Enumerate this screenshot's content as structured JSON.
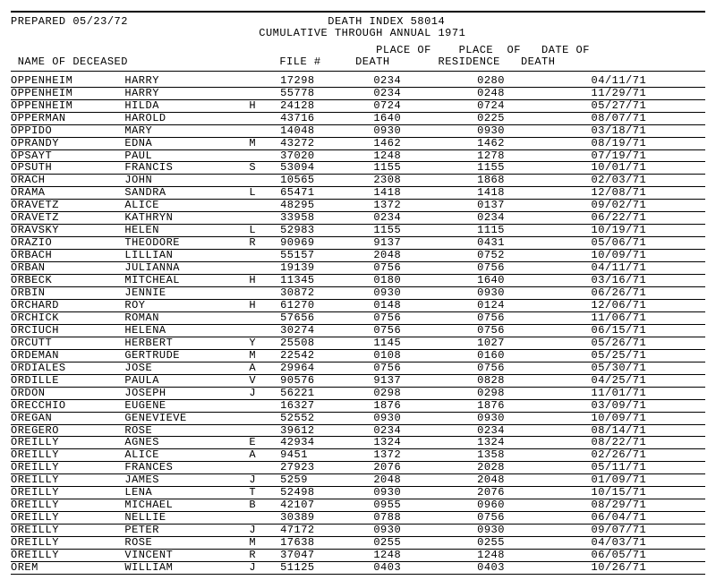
{
  "header": {
    "prepared_label": "PREPARED",
    "prepared_date": "05/23/72",
    "title_line1": "DEATH INDEX 58014",
    "title_line2": "CUMULATIVE THROUGH ANNUAL 1971"
  },
  "columns": {
    "name": "NAME OF DECEASED",
    "file": "FILE #",
    "pod1": "PLACE OF",
    "pod2": "DEATH",
    "por1": "PLACE  OF",
    "por2": "RESIDENCE",
    "dod1": "DATE OF",
    "dod2": "DEATH"
  },
  "rows": [
    {
      "ln": "OPPENHEIM",
      "fn": "HARRY",
      "mi": "",
      "file": "17298",
      "pod": "0234",
      "por": "0280",
      "dod": "04/11/71"
    },
    {
      "ln": "OPPENHEIM",
      "fn": "HARRY",
      "mi": "",
      "file": "55778",
      "pod": "0234",
      "por": "0248",
      "dod": "11/29/71"
    },
    {
      "ln": "OPPENHEIM",
      "fn": "HILDA",
      "mi": "H",
      "file": "24128",
      "pod": "0724",
      "por": "0724",
      "dod": "05/27/71"
    },
    {
      "ln": "OPPERMAN",
      "fn": "HAROLD",
      "mi": "",
      "file": "43716",
      "pod": "1640",
      "por": "0225",
      "dod": "08/07/71"
    },
    {
      "ln": "OPPIDO",
      "fn": "MARY",
      "mi": "",
      "file": "14048",
      "pod": "0930",
      "por": "0930",
      "dod": "03/18/71"
    },
    {
      "ln": "OPRANDY",
      "fn": "EDNA",
      "mi": "M",
      "file": "43272",
      "pod": "1462",
      "por": "1462",
      "dod": "08/19/71"
    },
    {
      "ln": "OPSAYT",
      "fn": "PAUL",
      "mi": "",
      "file": "37020",
      "pod": "1248",
      "por": "1278",
      "dod": "07/19/71"
    },
    {
      "ln": "OPSUTH",
      "fn": "FRANCIS",
      "mi": "S",
      "file": "53094",
      "pod": "1155",
      "por": "1155",
      "dod": "10/01/71"
    },
    {
      "ln": "ORACH",
      "fn": "JOHN",
      "mi": "",
      "file": "10565",
      "pod": "2308",
      "por": "1868",
      "dod": "02/03/71"
    },
    {
      "ln": "ORAMA",
      "fn": "SANDRA",
      "mi": "L",
      "file": "65471",
      "pod": "1418",
      "por": "1418",
      "dod": "12/08/71"
    },
    {
      "ln": "ORAVETZ",
      "fn": "ALICE",
      "mi": "",
      "file": "48295",
      "pod": "1372",
      "por": "0137",
      "dod": "09/02/71"
    },
    {
      "ln": "ORAVETZ",
      "fn": "KATHRYN",
      "mi": "",
      "file": "33958",
      "pod": "0234",
      "por": "0234",
      "dod": "06/22/71"
    },
    {
      "ln": "ORAVSKY",
      "fn": "HELEN",
      "mi": "L",
      "file": "52983",
      "pod": "1155",
      "por": "1115",
      "dod": "10/19/71"
    },
    {
      "ln": "ORAZIO",
      "fn": "THEODORE",
      "mi": "R",
      "file": "90969",
      "pod": "9137",
      "por": "0431",
      "dod": "05/06/71"
    },
    {
      "ln": "ORBACH",
      "fn": "LILLIAN",
      "mi": "",
      "file": "55157",
      "pod": "2048",
      "por": "0752",
      "dod": "10/09/71"
    },
    {
      "ln": "ORBAN",
      "fn": "JULIANNA",
      "mi": "",
      "file": "19139",
      "pod": "0756",
      "por": "0756",
      "dod": "04/11/71"
    },
    {
      "ln": "ORBECK",
      "fn": "MITCHEAL",
      "mi": "H",
      "file": "11345",
      "pod": "0180",
      "por": "1640",
      "dod": "03/16/71"
    },
    {
      "ln": "ORBIN",
      "fn": "JENNIE",
      "mi": "",
      "file": "30872",
      "pod": "0930",
      "por": "0930",
      "dod": "06/26/71"
    },
    {
      "ln": "ORCHARD",
      "fn": "ROY",
      "mi": "H",
      "file": "61270",
      "pod": "0148",
      "por": "0124",
      "dod": "12/06/71"
    },
    {
      "ln": "ORCHICK",
      "fn": "ROMAN",
      "mi": "",
      "file": "57656",
      "pod": "0756",
      "por": "0756",
      "dod": "11/06/71"
    },
    {
      "ln": "ORCIUCH",
      "fn": "HELENA",
      "mi": "",
      "file": "30274",
      "pod": "0756",
      "por": "0756",
      "dod": "06/15/71"
    },
    {
      "ln": "ORCUTT",
      "fn": "HERBERT",
      "mi": "Y",
      "file": "25508",
      "pod": "1145",
      "por": "1027",
      "dod": "05/26/71"
    },
    {
      "ln": "ORDEMAN",
      "fn": "GERTRUDE",
      "mi": "M",
      "file": "22542",
      "pod": "0108",
      "por": "0160",
      "dod": "05/25/71"
    },
    {
      "ln": "ORDIALES",
      "fn": "JOSE",
      "mi": "A",
      "file": "29964",
      "pod": "0756",
      "por": "0756",
      "dod": "05/30/71"
    },
    {
      "ln": "ORDILLE",
      "fn": "PAULA",
      "mi": "V",
      "file": "90576",
      "pod": "9137",
      "por": "0828",
      "dod": "04/25/71"
    },
    {
      "ln": "ORDON",
      "fn": "JOSEPH",
      "mi": "J",
      "file": "56221",
      "pod": "0298",
      "por": "0298",
      "dod": "11/01/71"
    },
    {
      "ln": "ORECCHIO",
      "fn": "EUGENE",
      "mi": "",
      "file": "16327",
      "pod": "1876",
      "por": "1876",
      "dod": "03/09/71"
    },
    {
      "ln": "OREGAN",
      "fn": "GENEVIEVE",
      "mi": "",
      "file": "52552",
      "pod": "0930",
      "por": "0930",
      "dod": "10/09/71"
    },
    {
      "ln": "OREGERO",
      "fn": "ROSE",
      "mi": "",
      "file": "39612",
      "pod": "0234",
      "por": "0234",
      "dod": "08/14/71"
    },
    {
      "ln": "OREILLY",
      "fn": "AGNES",
      "mi": "E",
      "file": "42934",
      "pod": "1324",
      "por": "1324",
      "dod": "08/22/71"
    },
    {
      "ln": "OREILLY",
      "fn": "ALICE",
      "mi": "A",
      "file": "9451",
      "pod": "1372",
      "por": "1358",
      "dod": "02/26/71"
    },
    {
      "ln": "OREILLY",
      "fn": "FRANCES",
      "mi": "",
      "file": "27923",
      "pod": "2076",
      "por": "2028",
      "dod": "05/11/71"
    },
    {
      "ln": "OREILLY",
      "fn": "JAMES",
      "mi": "J",
      "file": "5259",
      "pod": "2048",
      "por": "2048",
      "dod": "01/09/71"
    },
    {
      "ln": "OREILLY",
      "fn": "LENA",
      "mi": "T",
      "file": "52498",
      "pod": "0930",
      "por": "2076",
      "dod": "10/15/71"
    },
    {
      "ln": "OREILLY",
      "fn": "MICHAEL",
      "mi": "B",
      "file": "42107",
      "pod": "0955",
      "por": "0960",
      "dod": "08/29/71"
    },
    {
      "ln": "OREILLY",
      "fn": "NELLIE",
      "mi": "",
      "file": "30389",
      "pod": "0788",
      "por": "0756",
      "dod": "06/04/71"
    },
    {
      "ln": "OREILLY",
      "fn": "PETER",
      "mi": "J",
      "file": "47172",
      "pod": "0930",
      "por": "0930",
      "dod": "09/07/71"
    },
    {
      "ln": "OREILLY",
      "fn": "ROSE",
      "mi": "M",
      "file": "17638",
      "pod": "0255",
      "por": "0255",
      "dod": "04/03/71"
    },
    {
      "ln": "OREILLY",
      "fn": "VINCENT",
      "mi": "R",
      "file": "37047",
      "pod": "1248",
      "por": "1248",
      "dod": "06/05/71"
    },
    {
      "ln": "OREM",
      "fn": "WILLIAM",
      "mi": "J",
      "file": "51125",
      "pod": "0403",
      "por": "0403",
      "dod": "10/26/71"
    }
  ]
}
